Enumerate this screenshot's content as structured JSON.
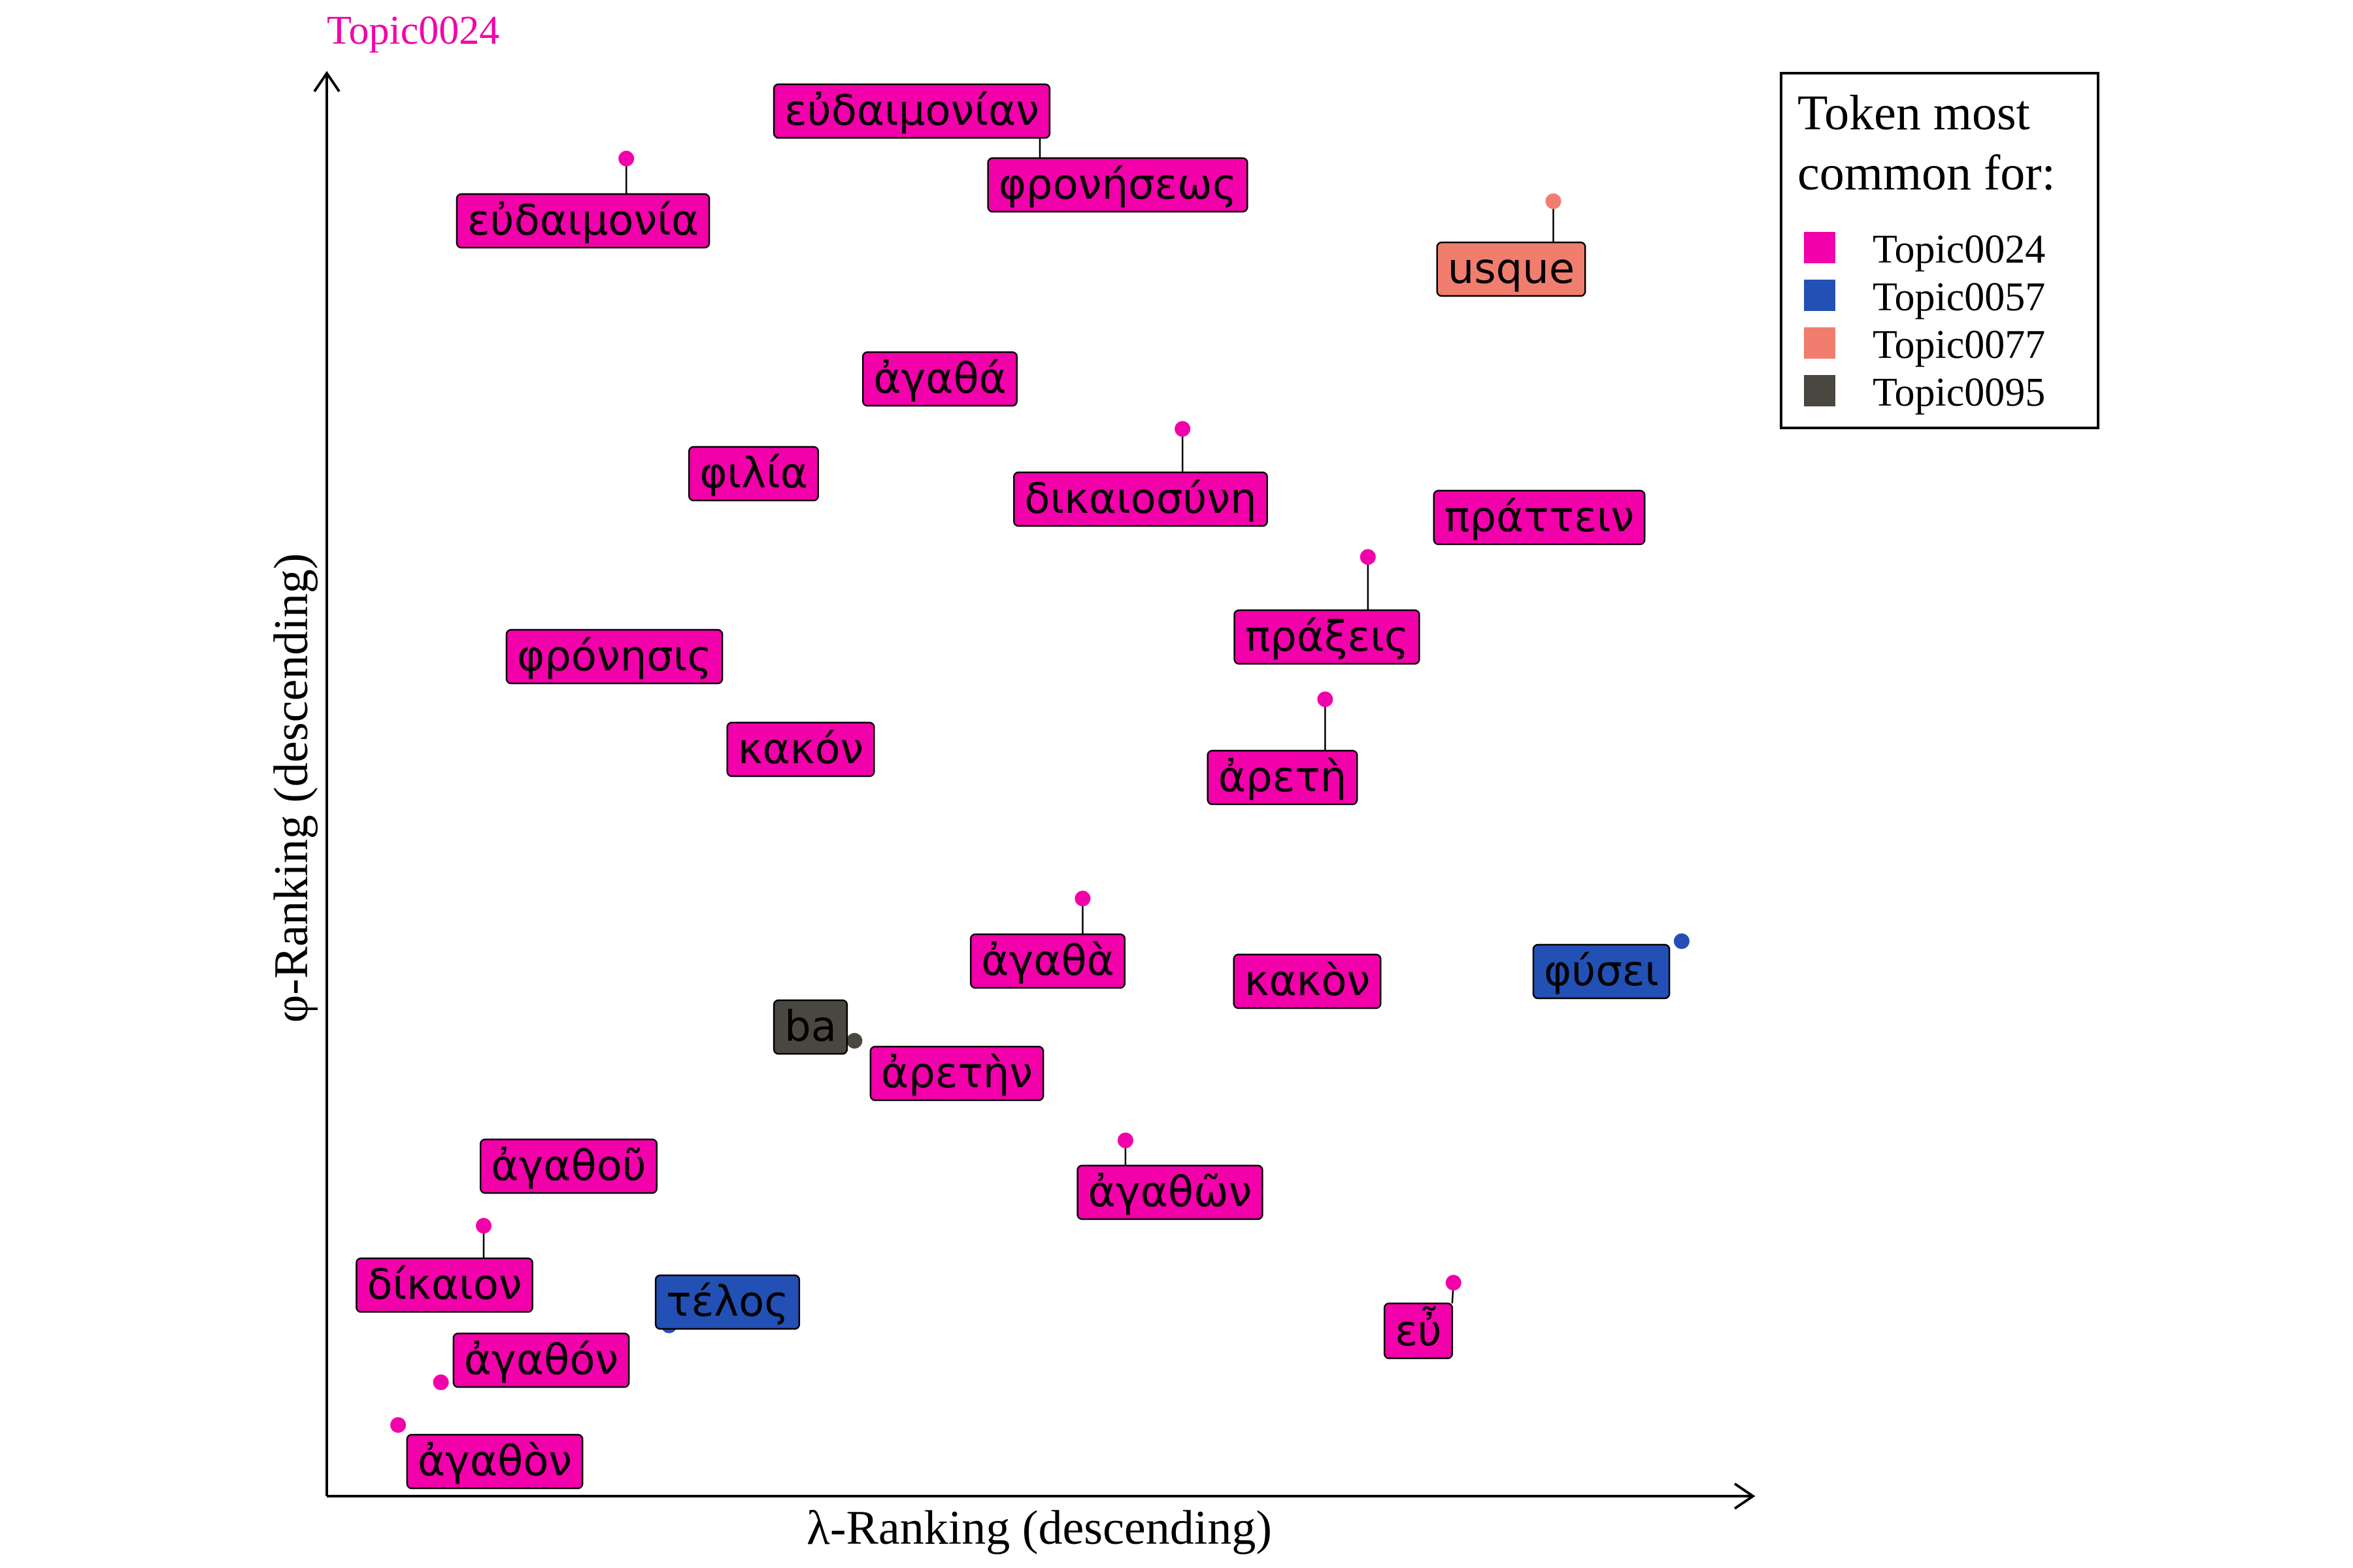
{
  "chart_data": {
    "type": "scatter",
    "title": "Topic0024",
    "xlabel": "λ-Ranking (descending)",
    "ylabel": "φ-Ranking (descending)",
    "xlim": [
      0,
      1
    ],
    "ylim": [
      0,
      1
    ],
    "grid": false,
    "legend": {
      "title_line1": "Token most",
      "title_line2": "common for:",
      "placement": "top-right",
      "entries": [
        {
          "name": "Topic0024",
          "color": "#F200AA"
        },
        {
          "name": "Topic0057",
          "color": "#2350B4"
        },
        {
          "name": "Topic0077",
          "color": "#F07D6E"
        },
        {
          "name": "Topic0095",
          "color": "#4A4740"
        }
      ]
    },
    "points": [
      {
        "label": "εὐδαιμονίαν",
        "topic": "Topic0024",
        "x": 0.34,
        "y": 0.98
      },
      {
        "label": "φρονήσεως",
        "topic": "Topic0024",
        "x": 0.5,
        "y": 0.98
      },
      {
        "label": "εὐδαιμονία",
        "topic": "Topic0024",
        "x": 0.21,
        "y": 0.94
      },
      {
        "label": "usque",
        "topic": "Topic0077",
        "x": 0.86,
        "y": 0.91
      },
      {
        "label": "ἀγαθά",
        "topic": "Topic0024",
        "x": 0.4,
        "y": 0.78
      },
      {
        "label": "φιλία",
        "topic": "Topic0024",
        "x": 0.27,
        "y": 0.72
      },
      {
        "label": "δικαιοσύνη",
        "topic": "Topic0024",
        "x": 0.6,
        "y": 0.75
      },
      {
        "label": "πράττειν",
        "topic": "Topic0024",
        "x": 0.83,
        "y": 0.69
      },
      {
        "label": "πράξεις",
        "topic": "Topic0024",
        "x": 0.73,
        "y": 0.66
      },
      {
        "label": "φρόνησις",
        "topic": "Topic0024",
        "x": 0.18,
        "y": 0.6
      },
      {
        "label": "κακόν",
        "topic": "Topic0024",
        "x": 0.3,
        "y": 0.53
      },
      {
        "label": "ἀρετὴ",
        "topic": "Topic0024",
        "x": 0.7,
        "y": 0.56
      },
      {
        "label": "ἀγαθὰ",
        "topic": "Topic0024",
        "x": 0.53,
        "y": 0.42
      },
      {
        "label": "κακὸν",
        "topic": "Topic0024",
        "x": 0.66,
        "y": 0.35
      },
      {
        "label": "φύσει",
        "topic": "Topic0057",
        "x": 0.95,
        "y": 0.39
      },
      {
        "label": "ba",
        "topic": "Topic0095",
        "x": 0.37,
        "y": 0.32
      },
      {
        "label": "ἀρετὴν",
        "topic": "Topic0024",
        "x": 0.47,
        "y": 0.29
      },
      {
        "label": "ἀγαθοῦ",
        "topic": "Topic0024",
        "x": 0.14,
        "y": 0.22
      },
      {
        "label": "ἀγαθῶν",
        "topic": "Topic0024",
        "x": 0.56,
        "y": 0.25
      },
      {
        "label": "δίκαιον",
        "topic": "Topic0024",
        "x": 0.11,
        "y": 0.19
      },
      {
        "label": "τέλος",
        "topic": "Topic0057",
        "x": 0.24,
        "y": 0.12
      },
      {
        "label": "εὖ",
        "topic": "Topic0024",
        "x": 0.79,
        "y": 0.15
      },
      {
        "label": "ἀγαθόν",
        "topic": "Topic0024",
        "x": 0.08,
        "y": 0.08
      },
      {
        "label": "ἀγαθὸν",
        "topic": "Topic0024",
        "x": 0.05,
        "y": 0.05
      }
    ]
  }
}
